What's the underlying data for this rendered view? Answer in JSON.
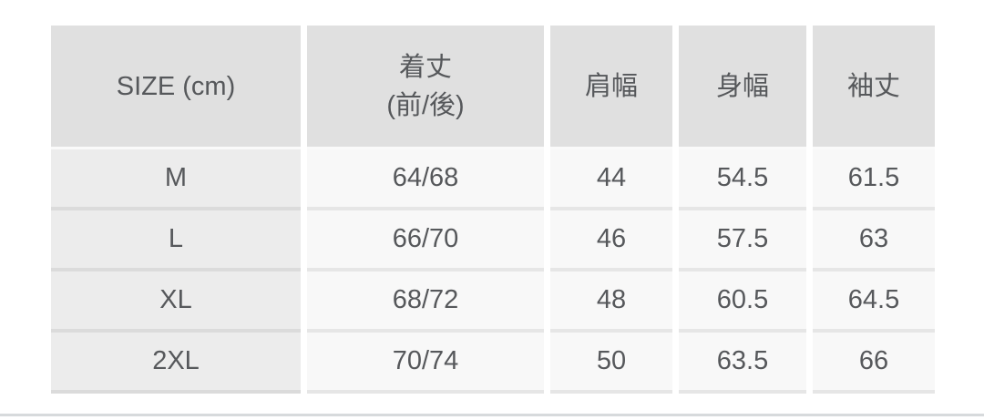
{
  "chart_data": {
    "type": "table",
    "title": "SIZE (cm)",
    "columns": [
      "SIZE (cm)",
      "着丈\n(前/後)",
      "肩幅",
      "身幅",
      "袖丈"
    ],
    "rows": [
      [
        "M",
        "64/68",
        "44",
        "54.5",
        "61.5"
      ],
      [
        "L",
        "66/70",
        "46",
        "57.5",
        "63"
      ],
      [
        "XL",
        "68/72",
        "48",
        "60.5",
        "64.5"
      ],
      [
        "2XL",
        "70/74",
        "50",
        "63.5",
        "66"
      ]
    ],
    "units": "cm",
    "layout": "header row gray, size column light gray, value cells near-white, white gaps between columns"
  },
  "colors": {
    "header_bg": "#e0e0e0",
    "size_column_bg": "#ececec",
    "value_cell_bg": "#f8f8f8",
    "text": "#56585b",
    "row_separator": "#dcdcdc",
    "page_divider": "#d7dadc",
    "background": "#ffffff"
  }
}
